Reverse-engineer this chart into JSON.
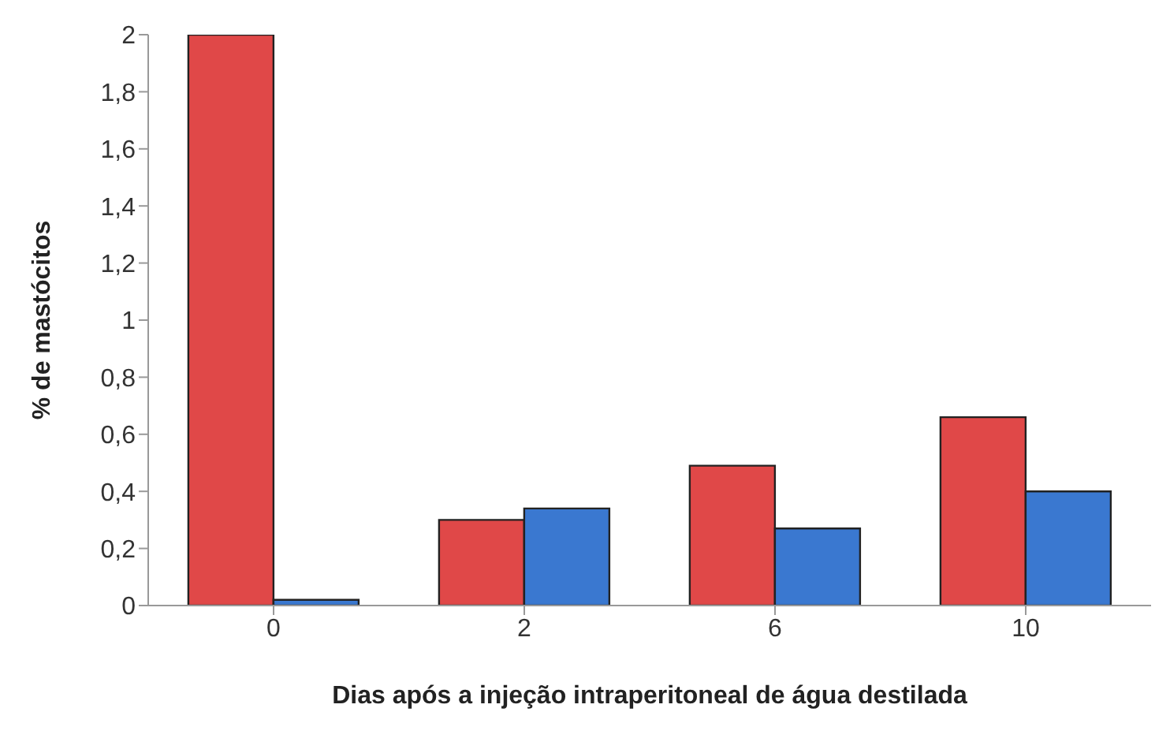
{
  "chart_data": {
    "type": "bar",
    "xlabel": "Dias após a injeção intraperitoneal de água destilada",
    "ylabel": "% de mastócitos",
    "categories": [
      "0",
      "2",
      "6",
      "10"
    ],
    "series": [
      {
        "color": "#e04848",
        "values": [
          2.0,
          0.3,
          0.49,
          0.66
        ]
      },
      {
        "color": "#3a78d0",
        "values": [
          0.02,
          0.34,
          0.27,
          0.4
        ]
      }
    ],
    "ylim": [
      0,
      2
    ],
    "yticks": [
      0,
      {
        "value": 0.2,
        "label": "0,2"
      },
      {
        "value": 0.4,
        "label": "0,4"
      },
      {
        "value": 0.6,
        "label": "0,6"
      },
      {
        "value": 0.8,
        "label": "0,8"
      },
      1,
      {
        "value": 1.2,
        "label": "1,2"
      },
      {
        "value": 1.4,
        "label": "1,4"
      },
      {
        "value": 1.6,
        "label": "1,6"
      },
      {
        "value": 1.8,
        "label": "1,8"
      },
      2
    ],
    "grid": false,
    "legend": false
  }
}
